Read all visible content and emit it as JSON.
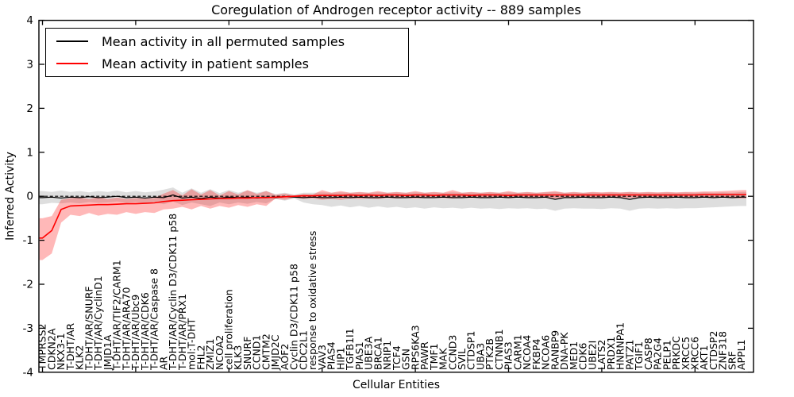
{
  "legend": {
    "items": [
      {
        "label": "Mean activity in all permuted samples",
        "color": "#000000"
      },
      {
        "label": "Mean activity in patient samples",
        "color": "#ff0000"
      }
    ]
  },
  "chart_data": {
    "type": "line",
    "title": "Coregulation of Androgen receptor activity -- 889 samples",
    "xlabel": "Cellular Entities",
    "ylabel": "Inferred Activity",
    "ylim": [
      -4,
      4
    ],
    "grid": false,
    "legend_position": "upper left",
    "x_major_tick_interval": 10,
    "reference_line": {
      "y": 0,
      "style": "dashed",
      "color": "#000000"
    },
    "yticks": [
      {
        "v": 4,
        "label": "4"
      },
      {
        "v": 3,
        "label": "3"
      },
      {
        "v": 2,
        "label": "2"
      },
      {
        "v": 1,
        "label": "1"
      },
      {
        "v": 0,
        "label": "0"
      },
      {
        "v": -1,
        "label": "-1"
      },
      {
        "v": -2,
        "label": "-2"
      },
      {
        "v": -3,
        "label": "-3"
      },
      {
        "v": -4,
        "label": "-4"
      }
    ],
    "categories": [
      "TMPRSS2",
      "CDKN2A",
      "NKX3-1",
      "T-DHT/AR",
      "KLK2",
      "T-DHT/AR/SNURF",
      "T-DHT/AR/CyclinD1",
      "JMJD1A",
      "T-DHT/AR/TIF2/CARM1",
      "T-DHT/AR/ARA70",
      "T-DHT/AR/Ubc9",
      "T-DHT/AR/CDK6",
      "T-DHT/AR/Caspase 8",
      "AR",
      "T-DHT/AR/Cyclin D3/CDK11 p58",
      "T-DHT/AR/PRX1",
      "mol:T-DHT",
      "FHL2",
      "ZMIZ1",
      "NCOA2",
      "cell proliferation",
      "KLK3",
      "SNURF",
      "CCND1",
      "CMTM2",
      "JMJD2C",
      "AOF2",
      "Cyclin D3/CDK11 p58",
      "CDC2L1",
      "response to oxidative stress",
      "VAV3",
      "PIAS4",
      "HIP1",
      "TGFB1I1",
      "PIAS1",
      "UBE3A",
      "BRCA1",
      "NRIP1",
      "TCF4",
      "GSN",
      "RPS6KA3",
      "PAWR",
      "TMF1",
      "MAK",
      "CCND3",
      "SVIL",
      "CTDSP1",
      "UBA3",
      "PTK2B",
      "CTNNB1",
      "PIAS3",
      "CARM1",
      "NCOA4",
      "FKBP4",
      "NCOA6",
      "RANBP9",
      "DNA-PK",
      "MED1",
      "CDK6",
      "UBE2I",
      "LATS2",
      "PRDX1",
      "HNRNPA1",
      "PATZ1",
      "TGIF1",
      "CASP8",
      "PA2G4",
      "PELP1",
      "PRKDC",
      "XRCC5",
      "XRCC6",
      "AKT1",
      "CTDSP2",
      "ZNF318",
      "SRF",
      "APPL1"
    ],
    "series": [
      {
        "name": "Mean activity in all permuted samples",
        "line_color": "#000000",
        "band_color": "#888888",
        "band_opacity": 0.28,
        "mean": [
          -0.03,
          -0.02,
          -0.04,
          -0.02,
          -0.03,
          -0.01,
          -0.03,
          -0.02,
          0.0,
          -0.03,
          -0.02,
          -0.04,
          -0.02,
          -0.03,
          0.03,
          -0.04,
          -0.02,
          -0.05,
          -0.02,
          -0.04,
          -0.02,
          -0.03,
          -0.02,
          -0.04,
          -0.02,
          -0.03,
          -0.01,
          -0.02,
          -0.03,
          -0.02,
          -0.03,
          -0.03,
          -0.02,
          -0.03,
          -0.02,
          -0.03,
          -0.03,
          -0.02,
          -0.03,
          -0.03,
          -0.02,
          -0.03,
          -0.03,
          -0.02,
          -0.03,
          -0.03,
          -0.02,
          -0.03,
          -0.03,
          -0.02,
          -0.03,
          -0.02,
          -0.03,
          -0.03,
          -0.02,
          -0.07,
          -0.03,
          -0.03,
          -0.02,
          -0.03,
          -0.03,
          -0.02,
          -0.03,
          -0.07,
          -0.03,
          -0.02,
          -0.03,
          -0.03,
          -0.02,
          -0.03,
          -0.03,
          -0.02,
          -0.03,
          -0.02,
          -0.03,
          -0.02
        ],
        "upper": [
          0.12,
          0.1,
          0.13,
          0.1,
          0.12,
          0.09,
          0.12,
          0.1,
          0.13,
          0.09,
          0.12,
          0.09,
          0.11,
          0.15,
          0.2,
          0.08,
          0.18,
          0.08,
          0.16,
          0.07,
          0.14,
          0.08,
          0.13,
          0.08,
          0.12,
          0.05,
          0.08,
          0.04,
          0.08,
          0.08,
          0.09,
          0.08,
          0.09,
          0.08,
          0.09,
          0.08,
          0.09,
          0.08,
          0.09,
          0.08,
          0.09,
          0.08,
          0.09,
          0.08,
          0.09,
          0.08,
          0.09,
          0.08,
          0.09,
          0.08,
          0.09,
          0.08,
          0.09,
          0.08,
          0.09,
          0.1,
          0.08,
          0.09,
          0.08,
          0.09,
          0.08,
          0.09,
          0.08,
          0.1,
          0.08,
          0.09,
          0.08,
          0.09,
          0.08,
          0.09,
          0.08,
          0.09,
          0.08,
          0.09,
          0.08,
          0.1
        ],
        "lower": [
          -0.18,
          -0.15,
          -0.16,
          -0.14,
          -0.16,
          -0.13,
          -0.15,
          -0.14,
          -0.12,
          -0.15,
          -0.13,
          -0.16,
          -0.13,
          -0.18,
          -0.12,
          -0.2,
          -0.14,
          -0.18,
          -0.22,
          -0.14,
          -0.18,
          -0.14,
          -0.17,
          -0.13,
          -0.16,
          -0.06,
          -0.1,
          -0.05,
          -0.14,
          -0.18,
          -0.2,
          -0.24,
          -0.21,
          -0.25,
          -0.22,
          -0.26,
          -0.23,
          -0.26,
          -0.24,
          -0.27,
          -0.25,
          -0.28,
          -0.25,
          -0.27,
          -0.26,
          -0.28,
          -0.26,
          -0.28,
          -0.27,
          -0.29,
          -0.27,
          -0.28,
          -0.27,
          -0.29,
          -0.28,
          -0.33,
          -0.28,
          -0.27,
          -0.28,
          -0.28,
          -0.29,
          -0.27,
          -0.28,
          -0.33,
          -0.28,
          -0.27,
          -0.28,
          -0.27,
          -0.28,
          -0.27,
          -0.27,
          -0.26,
          -0.25,
          -0.24,
          -0.23,
          -0.22
        ]
      },
      {
        "name": "Mean activity in patient samples",
        "line_color": "#ff0000",
        "band_color": "#ff0000",
        "band_opacity": 0.28,
        "mean": [
          -0.95,
          -0.78,
          -0.3,
          -0.22,
          -0.21,
          -0.2,
          -0.19,
          -0.19,
          -0.18,
          -0.17,
          -0.17,
          -0.16,
          -0.15,
          -0.12,
          -0.1,
          -0.09,
          -0.08,
          -0.07,
          -0.06,
          -0.05,
          -0.05,
          -0.04,
          -0.04,
          -0.03,
          -0.03,
          -0.02,
          -0.01,
          0.0,
          0.01,
          0.01,
          0.02,
          0.02,
          0.02,
          0.03,
          0.02,
          0.03,
          0.02,
          0.03,
          0.03,
          0.02,
          0.03,
          0.03,
          0.02,
          0.03,
          0.03,
          0.03,
          0.02,
          0.03,
          0.03,
          0.03,
          0.02,
          0.03,
          0.03,
          0.03,
          0.03,
          0.03,
          0.03,
          0.03,
          0.03,
          0.03,
          0.03,
          0.03,
          0.03,
          0.03,
          0.03,
          0.03,
          0.03,
          0.03,
          0.03,
          0.03,
          0.03,
          0.04,
          0.04,
          0.04,
          0.04,
          0.04
        ],
        "upper": [
          -0.5,
          -0.45,
          -0.08,
          -0.04,
          -0.03,
          -0.06,
          -0.02,
          -0.06,
          -0.03,
          -0.06,
          -0.04,
          -0.05,
          -0.04,
          0.06,
          0.14,
          0.02,
          0.16,
          0.04,
          0.14,
          0.02,
          0.12,
          0.04,
          0.14,
          0.05,
          0.12,
          0.03,
          0.06,
          0.02,
          0.05,
          0.04,
          0.14,
          0.08,
          0.12,
          0.08,
          0.1,
          0.08,
          0.12,
          0.08,
          0.1,
          0.08,
          0.12,
          0.08,
          0.1,
          0.08,
          0.14,
          0.08,
          0.1,
          0.08,
          0.1,
          0.08,
          0.12,
          0.08,
          0.1,
          0.08,
          0.1,
          0.12,
          0.08,
          0.1,
          0.08,
          0.1,
          0.09,
          0.1,
          0.09,
          0.1,
          0.09,
          0.1,
          0.09,
          0.1,
          0.09,
          0.1,
          0.1,
          0.11,
          0.11,
          0.12,
          0.13,
          0.14
        ],
        "lower": [
          -1.45,
          -1.3,
          -0.6,
          -0.42,
          -0.45,
          -0.38,
          -0.44,
          -0.4,
          -0.42,
          -0.36,
          -0.4,
          -0.36,
          -0.38,
          -0.3,
          -0.28,
          -0.24,
          -0.3,
          -0.22,
          -0.28,
          -0.22,
          -0.26,
          -0.2,
          -0.24,
          -0.18,
          -0.22,
          -0.05,
          -0.08,
          -0.03,
          -0.06,
          -0.05,
          -0.08,
          -0.06,
          -0.08,
          -0.05,
          -0.06,
          -0.05,
          -0.06,
          -0.04,
          -0.05,
          -0.04,
          -0.05,
          -0.04,
          -0.04,
          -0.04,
          -0.05,
          -0.04,
          -0.04,
          -0.03,
          -0.04,
          -0.03,
          -0.04,
          -0.03,
          -0.04,
          -0.03,
          -0.04,
          -0.05,
          -0.04,
          -0.04,
          -0.03,
          -0.04,
          -0.04,
          -0.03,
          -0.04,
          -0.04,
          -0.03,
          -0.04,
          -0.03,
          -0.04,
          -0.03,
          -0.03,
          -0.04,
          -0.03,
          -0.04,
          -0.03,
          -0.04,
          -0.05
        ]
      }
    ]
  }
}
